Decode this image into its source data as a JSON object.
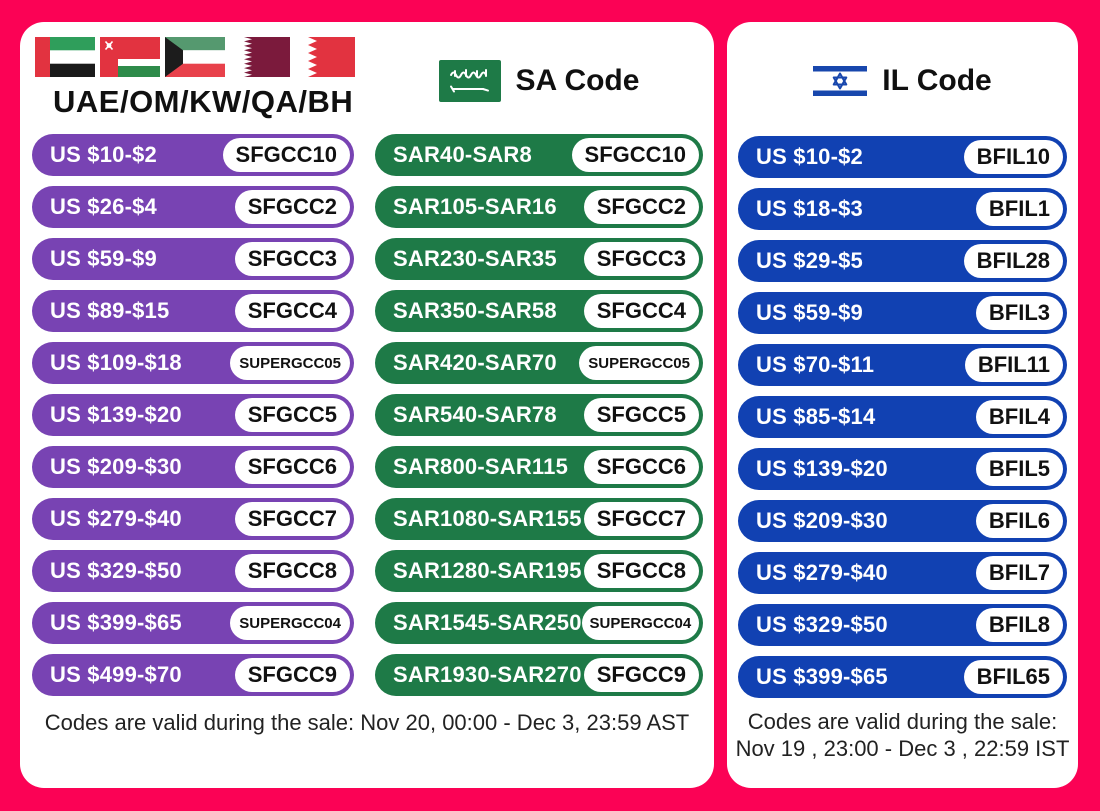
{
  "colors": {
    "background": "#FB0255",
    "gcc_pill": "#7843B3",
    "sa_pill": "#1E7A47",
    "il_pill": "#1141B2",
    "code_text": "#111111"
  },
  "card_left": {
    "gcc": {
      "title": "UAE/OM/KW/QA/BH",
      "flags": [
        "UAE",
        "Oman",
        "Kuwait",
        "Qatar",
        "Bahrain"
      ],
      "rows": [
        {
          "range": "US $10-$2",
          "code": "SFGCC10"
        },
        {
          "range": "US $26-$4",
          "code": "SFGCC2"
        },
        {
          "range": "US $59-$9",
          "code": "SFGCC3"
        },
        {
          "range": "US $89-$15",
          "code": "SFGCC4"
        },
        {
          "range": "US $109-$18",
          "code": "SUPERGCC05"
        },
        {
          "range": "US $139-$20",
          "code": "SFGCC5"
        },
        {
          "range": "US $209-$30",
          "code": "SFGCC6"
        },
        {
          "range": "US $279-$40",
          "code": "SFGCC7"
        },
        {
          "range": "US $329-$50",
          "code": "SFGCC8"
        },
        {
          "range": "US $399-$65",
          "code": "SUPERGCC04"
        },
        {
          "range": "US $499-$70",
          "code": "SFGCC9"
        }
      ]
    },
    "sa": {
      "title": "SA Code",
      "rows": [
        {
          "range": "SAR40-SAR8",
          "code": "SFGCC10"
        },
        {
          "range": "SAR105-SAR16",
          "code": "SFGCC2"
        },
        {
          "range": "SAR230-SAR35",
          "code": "SFGCC3"
        },
        {
          "range": "SAR350-SAR58",
          "code": "SFGCC4"
        },
        {
          "range": "SAR420-SAR70",
          "code": "SUPERGCC05"
        },
        {
          "range": "SAR540-SAR78",
          "code": "SFGCC5"
        },
        {
          "range": "SAR800-SAR115",
          "code": "SFGCC6"
        },
        {
          "range": "SAR1080-SAR155",
          "code": "SFGCC7"
        },
        {
          "range": "SAR1280-SAR195",
          "code": "SFGCC8"
        },
        {
          "range": "SAR1545-SAR250",
          "code": "SUPERGCC04"
        },
        {
          "range": "SAR1930-SAR270",
          "code": "SFGCC9"
        }
      ]
    },
    "footer": "Codes are valid during the sale: Nov 20, 00:00 - Dec 3, 23:59 AST"
  },
  "card_right": {
    "il": {
      "title": "IL Code",
      "rows": [
        {
          "range": "US $10-$2",
          "code": "BFIL10"
        },
        {
          "range": "US $18-$3",
          "code": "BFIL1"
        },
        {
          "range": "US $29-$5",
          "code": "BFIL28"
        },
        {
          "range": "US $59-$9",
          "code": "BFIL3"
        },
        {
          "range": "US $70-$11",
          "code": "BFIL11"
        },
        {
          "range": "US $85-$14",
          "code": "BFIL4"
        },
        {
          "range": "US $139-$20",
          "code": "BFIL5"
        },
        {
          "range": "US $209-$30",
          "code": "BFIL6"
        },
        {
          "range": "US $279-$40",
          "code": "BFIL7"
        },
        {
          "range": "US $329-$50",
          "code": "BFIL8"
        },
        {
          "range": "US $399-$65",
          "code": "BFIL65"
        }
      ]
    },
    "footer_line1": "Codes are valid during the sale:",
    "footer_line2": "Nov 19 , 23:00 - Dec 3 , 22:59 IST"
  }
}
